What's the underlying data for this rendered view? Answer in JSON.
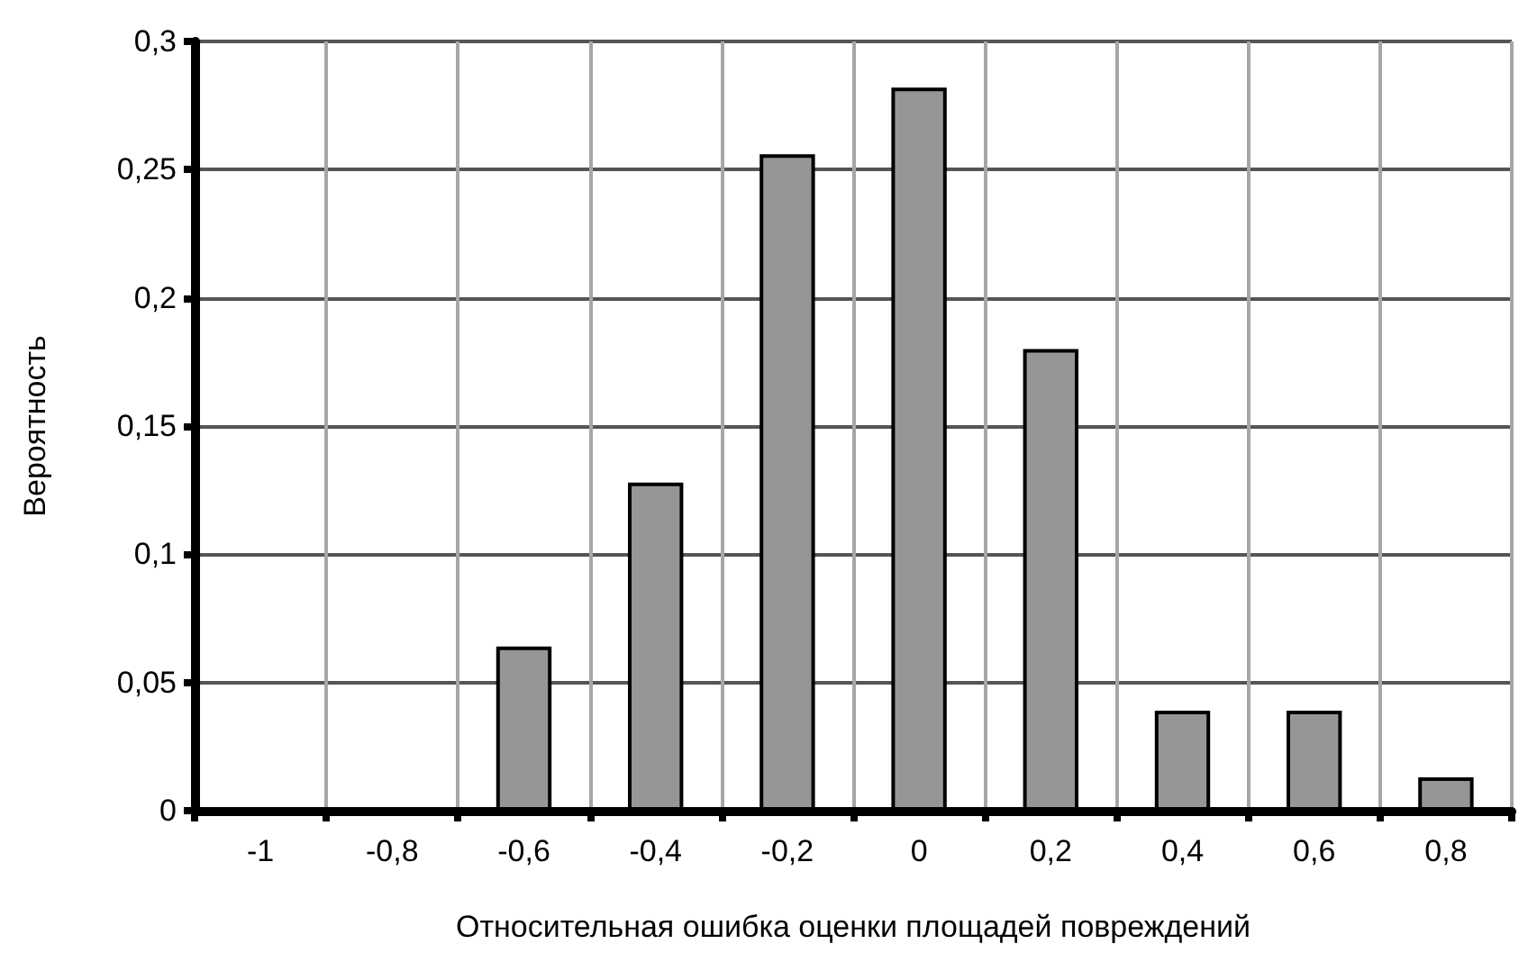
{
  "chart_data": {
    "type": "bar",
    "xlabel": "Относительная ошибка оценки площадей повреждений",
    "ylabel": "Вероятность",
    "categories": [
      "-1",
      "-0,8",
      "-0,6",
      "-0,4",
      "-0,2",
      "0",
      "0,2",
      "0,4",
      "0,6",
      "0,8"
    ],
    "values": [
      0,
      0,
      0.064,
      0.128,
      0.256,
      0.282,
      0.18,
      0.039,
      0.039,
      0.013
    ],
    "color": "#969696",
    "ylim": [
      0,
      0.3
    ],
    "yticks": [
      0,
      {
        "value": 0.05,
        "label": "0,05"
      },
      {
        "value": 0.1,
        "label": "0,1"
      },
      {
        "value": 0.15,
        "label": "0,15"
      },
      {
        "value": 0.2,
        "label": "0,2"
      },
      {
        "value": 0.25,
        "label": "0,25"
      },
      {
        "value": 0.3,
        "label": "0,3"
      }
    ],
    "grid": true
  }
}
